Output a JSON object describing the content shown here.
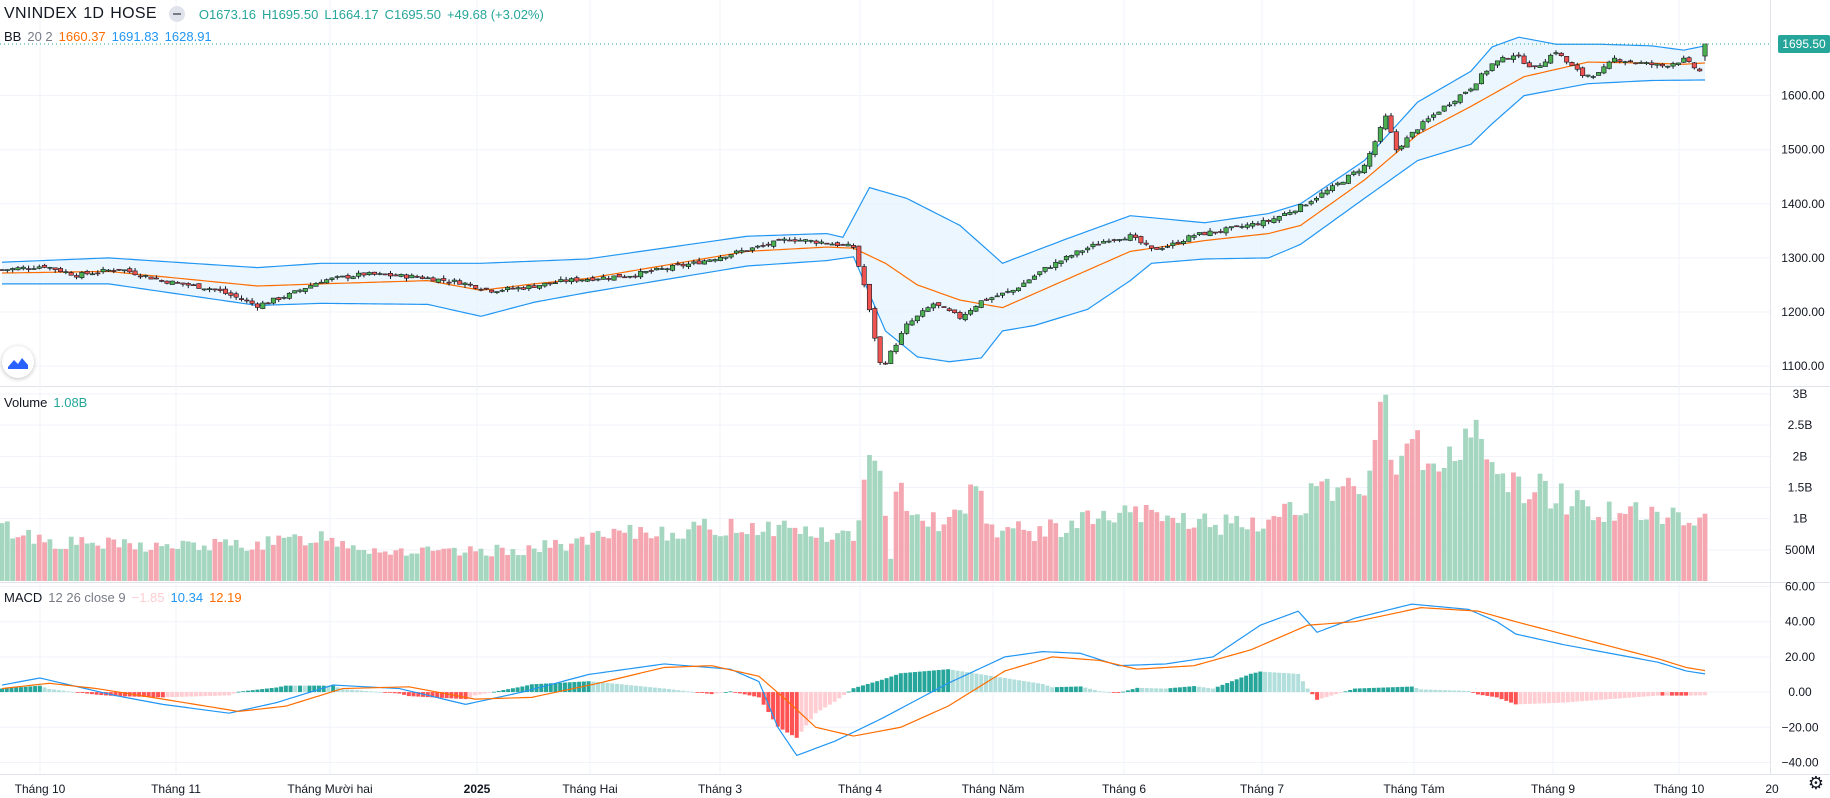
{
  "header": {
    "symbol": "VNINDEX",
    "interval": "1D",
    "exchange": "HOSE",
    "open": "O1673.16",
    "high": "H1695.50",
    "low": "L1664.17",
    "close": "C1695.50",
    "change": "+49.68 (+3.02%)"
  },
  "bb_legend": {
    "name": "BB",
    "params": "20 2",
    "basis": "1660.37",
    "upper": "1691.83",
    "lower": "1628.91"
  },
  "volume_legend": {
    "name": "Volume",
    "value": "1.08B"
  },
  "macd_legend": {
    "name": "MACD",
    "params": "12 26 close 9",
    "hist": "−1.85",
    "macd": "10.34",
    "signal": "12.19"
  },
  "last_price_label": "1695.50",
  "colors": {
    "up": "#26a69a",
    "up_candle": "#4caf50",
    "down": "#ef5350",
    "up_vol": "#a5d6c0",
    "down_vol": "#f4a7b0",
    "bb_band": "#2196f3",
    "bb_basis": "#ff6d00",
    "bb_fill": "#e3f2fd",
    "macd_line": "#2196f3",
    "signal_line": "#ff6d00",
    "hist_up_strong": "#26a69a",
    "hist_up_weak": "#b2dfdb",
    "hist_down_strong": "#ff5252",
    "hist_down_weak": "#ffcdd2",
    "grid": "#f0f3fa",
    "last_price": "#26a69a"
  },
  "chart_data": [
    {
      "type": "candlestick",
      "title": "VNINDEX 1D HOSE",
      "x_tick_labels": [
        "Tháng 10",
        "Tháng 11",
        "Tháng Mười hai",
        "2025",
        "Tháng Hai",
        "Tháng 3",
        "Tháng 4",
        "Tháng Năm",
        "Tháng 6",
        "Tháng 7",
        "Tháng Tám",
        "Tháng 9",
        "Tháng 10",
        "20"
      ],
      "y_ticks": [
        1100,
        1200,
        1300,
        1400,
        1500,
        1600
      ],
      "y_tick_labels": [
        "1100.00",
        "1200.00",
        "1300.00",
        "1400.00",
        "1500.00",
        "1600.00"
      ],
      "ylim": [
        1065,
        1725
      ],
      "grid": true,
      "anchors": [
        [
          0,
          1278
        ],
        [
          8,
          1285
        ],
        [
          14,
          1268
        ],
        [
          22,
          1280
        ],
        [
          30,
          1258
        ],
        [
          40,
          1242
        ],
        [
          48,
          1212
        ],
        [
          54,
          1232
        ],
        [
          60,
          1258
        ],
        [
          68,
          1270
        ],
        [
          78,
          1265
        ],
        [
          86,
          1255
        ],
        [
          92,
          1240
        ],
        [
          98,
          1245
        ],
        [
          106,
          1258
        ],
        [
          118,
          1268
        ],
        [
          130,
          1290
        ],
        [
          140,
          1315
        ],
        [
          148,
          1335
        ],
        [
          155,
          1328
        ],
        [
          160,
          1320
        ],
        [
          162,
          1250
        ],
        [
          165,
          1105
        ],
        [
          166,
          1108
        ],
        [
          170,
          1175
        ],
        [
          175,
          1215
        ],
        [
          180,
          1190
        ],
        [
          184,
          1220
        ],
        [
          190,
          1240
        ],
        [
          196,
          1280
        ],
        [
          202,
          1310
        ],
        [
          208,
          1335
        ],
        [
          212,
          1340
        ],
        [
          216,
          1315
        ],
        [
          220,
          1325
        ],
        [
          224,
          1342
        ],
        [
          230,
          1352
        ],
        [
          238,
          1368
        ],
        [
          244,
          1395
        ],
        [
          250,
          1430
        ],
        [
          256,
          1470
        ],
        [
          258,
          1515
        ],
        [
          260,
          1560
        ],
        [
          262,
          1500
        ],
        [
          266,
          1540
        ],
        [
          270,
          1572
        ],
        [
          276,
          1615
        ],
        [
          280,
          1658
        ],
        [
          284,
          1676
        ],
        [
          288,
          1650
        ],
        [
          292,
          1682
        ],
        [
          294,
          1662
        ],
        [
          297,
          1638
        ],
        [
          300,
          1640
        ],
        [
          303,
          1668
        ],
        [
          308,
          1660
        ],
        [
          312,
          1655
        ],
        [
          316,
          1666
        ],
        [
          319,
          1645
        ],
        [
          320,
          1695.5
        ]
      ],
      "bb_upper_anchors": [
        [
          0,
          1292
        ],
        [
          20,
          1300
        ],
        [
          48,
          1282
        ],
        [
          60,
          1290
        ],
        [
          90,
          1290
        ],
        [
          110,
          1298
        ],
        [
          140,
          1340
        ],
        [
          155,
          1345
        ],
        [
          158,
          1338
        ],
        [
          163,
          1430
        ],
        [
          170,
          1410
        ],
        [
          180,
          1360
        ],
        [
          188,
          1290
        ],
        [
          200,
          1335
        ],
        [
          212,
          1378
        ],
        [
          226,
          1365
        ],
        [
          238,
          1382
        ],
        [
          244,
          1400
        ],
        [
          256,
          1480
        ],
        [
          266,
          1588
        ],
        [
          276,
          1645
        ],
        [
          280,
          1690
        ],
        [
          285,
          1708
        ],
        [
          292,
          1695
        ],
        [
          300,
          1695
        ],
        [
          310,
          1692
        ],
        [
          316,
          1684
        ],
        [
          320,
          1692
        ]
      ],
      "bb_lower_anchors": [
        [
          0,
          1252
        ],
        [
          20,
          1252
        ],
        [
          48,
          1212
        ],
        [
          60,
          1216
        ],
        [
          80,
          1214
        ],
        [
          90,
          1192
        ],
        [
          100,
          1218
        ],
        [
          110,
          1236
        ],
        [
          140,
          1285
        ],
        [
          155,
          1295
        ],
        [
          160,
          1302
        ],
        [
          166,
          1165
        ],
        [
          172,
          1117
        ],
        [
          178,
          1108
        ],
        [
          184,
          1115
        ],
        [
          188,
          1165
        ],
        [
          194,
          1175
        ],
        [
          204,
          1205
        ],
        [
          212,
          1258
        ],
        [
          216,
          1290
        ],
        [
          226,
          1298
        ],
        [
          238,
          1300
        ],
        [
          244,
          1325
        ],
        [
          256,
          1410
        ],
        [
          266,
          1480
        ],
        [
          276,
          1510
        ],
        [
          280,
          1548
        ],
        [
          286,
          1600
        ],
        [
          298,
          1622
        ],
        [
          310,
          1628
        ],
        [
          320,
          1628.91
        ]
      ],
      "bb_basis_anchors": [
        [
          0,
          1272
        ],
        [
          20,
          1275
        ],
        [
          48,
          1248
        ],
        [
          60,
          1252
        ],
        [
          80,
          1258
        ],
        [
          90,
          1240
        ],
        [
          100,
          1252
        ],
        [
          110,
          1262
        ],
        [
          140,
          1312
        ],
        [
          155,
          1320
        ],
        [
          160,
          1318
        ],
        [
          166,
          1290
        ],
        [
          172,
          1250
        ],
        [
          180,
          1222
        ],
        [
          188,
          1208
        ],
        [
          200,
          1260
        ],
        [
          212,
          1312
        ],
        [
          226,
          1332
        ],
        [
          238,
          1345
        ],
        [
          244,
          1360
        ],
        [
          256,
          1444
        ],
        [
          266,
          1528
        ],
        [
          276,
          1580
        ],
        [
          286,
          1635
        ],
        [
          298,
          1662
        ],
        [
          310,
          1660
        ],
        [
          316,
          1658
        ],
        [
          320,
          1660.37
        ]
      ],
      "last": {
        "open": 1673.16,
        "high": 1695.5,
        "low": 1664.17,
        "close": 1695.5
      }
    },
    {
      "type": "bar",
      "title": "Volume",
      "y_ticks": [
        500000000,
        1000000000,
        1500000000,
        2000000000,
        2500000000,
        3000000000
      ],
      "y_tick_labels": [
        "500M",
        "1B",
        "1.5B",
        "2B",
        "2.5B",
        "3B"
      ],
      "ylim": [
        0,
        3000000000
      ],
      "anchors_billion": [
        [
          0,
          0.85
        ],
        [
          10,
          0.62
        ],
        [
          30,
          0.55
        ],
        [
          50,
          0.6
        ],
        [
          60,
          0.72
        ],
        [
          70,
          0.5
        ],
        [
          85,
          0.45
        ],
        [
          100,
          0.52
        ],
        [
          110,
          0.65
        ],
        [
          120,
          0.78
        ],
        [
          130,
          0.82
        ],
        [
          140,
          0.88
        ],
        [
          150,
          0.85
        ],
        [
          155,
          0.7
        ],
        [
          160,
          0.75
        ],
        [
          163,
          1.85
        ],
        [
          165,
          1.6
        ],
        [
          167,
          0.3
        ],
        [
          168,
          1.7
        ],
        [
          172,
          1.1
        ],
        [
          178,
          0.9
        ],
        [
          183,
          1.6
        ],
        [
          186,
          0.85
        ],
        [
          195,
          0.78
        ],
        [
          205,
          1.0
        ],
        [
          215,
          1.05
        ],
        [
          225,
          0.95
        ],
        [
          235,
          0.85
        ],
        [
          240,
          1.1
        ],
        [
          245,
          1.35
        ],
        [
          255,
          1.4
        ],
        [
          260,
          2.75
        ],
        [
          262,
          1.5
        ],
        [
          264,
          2.75
        ],
        [
          270,
          1.6
        ],
        [
          276,
          2.35
        ],
        [
          279,
          2.3
        ],
        [
          282,
          1.55
        ],
        [
          290,
          1.45
        ],
        [
          300,
          1.15
        ],
        [
          310,
          1.05
        ],
        [
          318,
          0.95
        ],
        [
          320,
          1.08
        ]
      ]
    },
    {
      "type": "line",
      "title": "MACD 12 26 close 9",
      "series": [
        {
          "name": "MACD"
        },
        {
          "name": "Signal"
        },
        {
          "name": "Histogram"
        }
      ],
      "y_ticks": [
        -40,
        -20,
        0,
        20,
        40,
        60
      ],
      "y_tick_labels": [
        "−40.00",
        "−20.00",
        "0.00",
        "20.00",
        "40.00",
        "60.00"
      ],
      "ylim": [
        -46,
        62
      ],
      "macd_anchors": [
        [
          0,
          4
        ],
        [
          8,
          8
        ],
        [
          16,
          3
        ],
        [
          24,
          -2
        ],
        [
          34,
          -7
        ],
        [
          48,
          -12
        ],
        [
          58,
          -6
        ],
        [
          70,
          4
        ],
        [
          84,
          2
        ],
        [
          98,
          -7
        ],
        [
          110,
          0
        ],
        [
          124,
          10
        ],
        [
          140,
          16
        ],
        [
          154,
          13
        ],
        [
          160,
          6
        ],
        [
          164,
          -20
        ],
        [
          168,
          -36
        ],
        [
          176,
          -28
        ],
        [
          186,
          -15
        ],
        [
          200,
          5
        ],
        [
          212,
          20
        ],
        [
          220,
          23
        ],
        [
          228,
          22
        ],
        [
          236,
          15
        ],
        [
          246,
          16
        ],
        [
          256,
          20
        ],
        [
          266,
          38
        ],
        [
          274,
          46
        ],
        [
          278,
          34
        ],
        [
          286,
          42
        ],
        [
          298,
          50
        ],
        [
          310,
          47
        ],
        [
          316,
          40
        ],
        [
          320,
          33
        ],
        [
          330,
          27
        ],
        [
          340,
          22
        ],
        [
          350,
          17
        ],
        [
          356,
          12
        ],
        [
          360,
          10.34
        ]
      ],
      "signal_anchors": [
        [
          0,
          2
        ],
        [
          10,
          5
        ],
        [
          20,
          2
        ],
        [
          34,
          -4
        ],
        [
          50,
          -11
        ],
        [
          60,
          -8
        ],
        [
          72,
          2
        ],
        [
          86,
          3
        ],
        [
          100,
          -4
        ],
        [
          112,
          -3
        ],
        [
          126,
          5
        ],
        [
          140,
          14
        ],
        [
          150,
          15
        ],
        [
          160,
          9
        ],
        [
          166,
          -5
        ],
        [
          172,
          -20
        ],
        [
          180,
          -25
        ],
        [
          190,
          -20
        ],
        [
          200,
          -8
        ],
        [
          212,
          12
        ],
        [
          222,
          20
        ],
        [
          232,
          18
        ],
        [
          240,
          13
        ],
        [
          252,
          15
        ],
        [
          264,
          24
        ],
        [
          276,
          38
        ],
        [
          286,
          40
        ],
        [
          300,
          48
        ],
        [
          312,
          46
        ],
        [
          320,
          40
        ],
        [
          330,
          33
        ],
        [
          340,
          26
        ],
        [
          350,
          19
        ],
        [
          356,
          14
        ],
        [
          360,
          12.19
        ]
      ]
    }
  ]
}
